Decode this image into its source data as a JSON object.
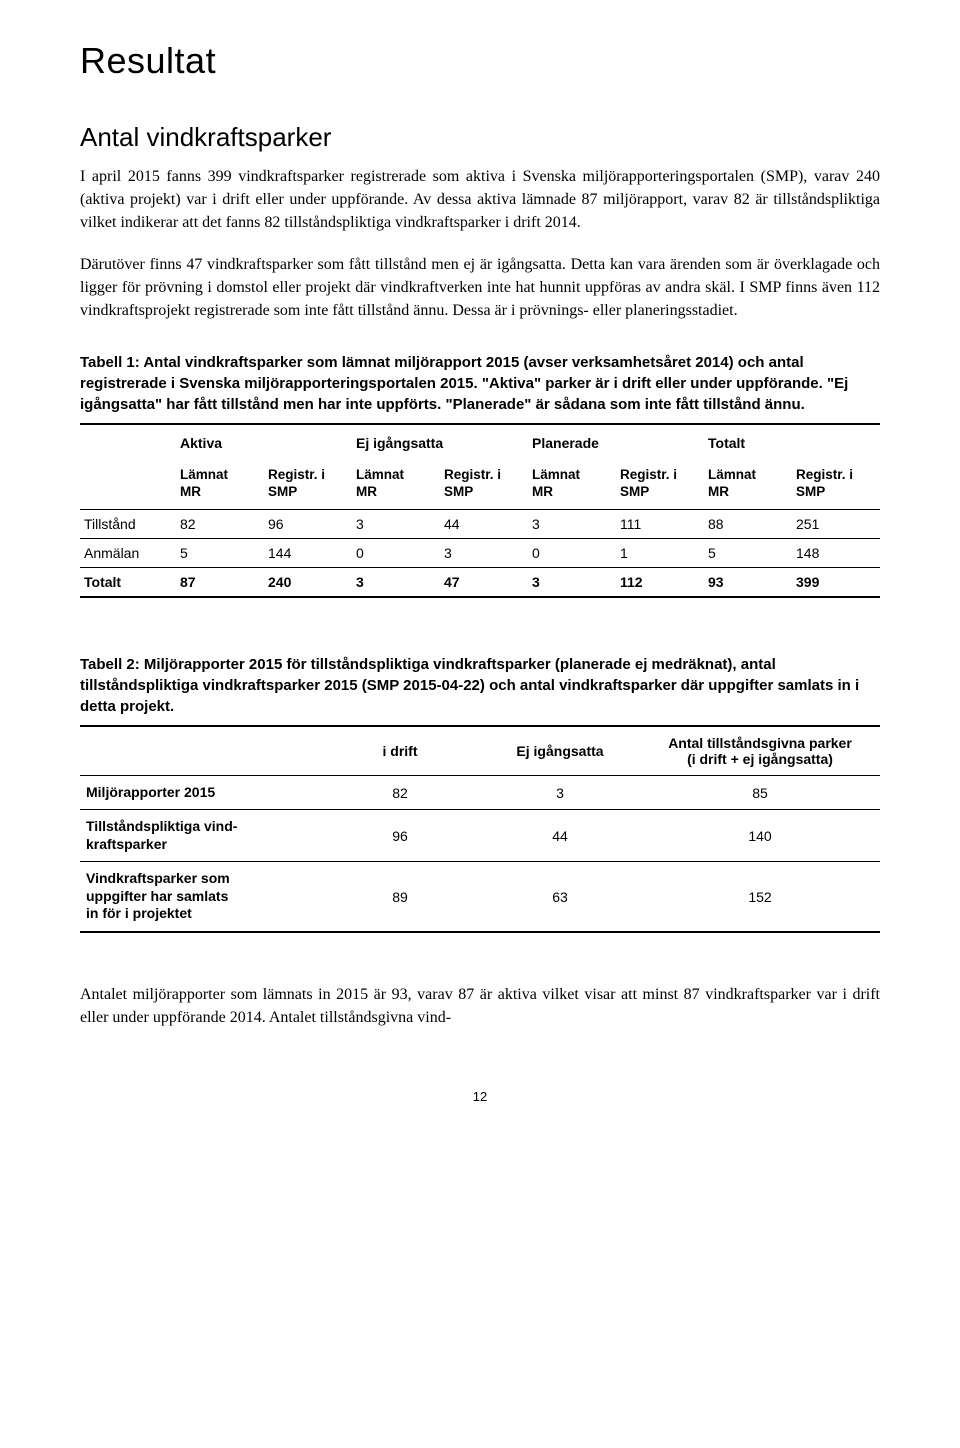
{
  "page": {
    "number": "12",
    "title": "Resultat",
    "section_heading": "Antal vindkraftsparker",
    "paragraph1": "I april 2015 fanns 399 vindkraftsparker registrerade som aktiva i Svenska miljörapporteringsportalen (SMP), varav 240 (aktiva projekt) var i drift eller under uppförande. Av dessa aktiva lämnade 87 miljörapport, varav 82 är tillståndspliktiga vilket indikerar att det fanns 82 tillståndspliktiga vindkraftsparker i drift 2014.",
    "paragraph2": "Därutöver finns 47 vindkraftsparker som fått tillstånd men ej är igångsatta. Detta kan vara ärenden som är överklagade och ligger för prövning i domstol eller projekt där vindkraftverken inte hat hunnit uppföras av andra skäl. I SMP finns även 112 vindkraftsprojekt registrerade som inte fått tillstånd ännu. Dessa är i prövnings- eller planeringsstadiet.",
    "paragraph3": "Antalet miljörapporter som lämnats in 2015 är 93, varav 87 är aktiva vilket visar att minst 87 vindkraftsparker var i drift eller under uppförande 2014. Antalet tillståndsgivna vind-"
  },
  "table1": {
    "caption": "Tabell 1: Antal vindkraftsparker som lämnat miljörapport 2015 (avser verksamhetsåret 2014) och antal registrerade i Svenska miljörapporteringsportalen 2015. \"Aktiva\" parker är i drift eller under uppförande. \"Ej igångsatta\" har fått tillstånd men har inte uppförts. \"Planerade\" är sådana som inte fått tillstånd ännu.",
    "groups": [
      "Aktiva",
      "Ej igångsatta",
      "Planerade",
      "Totalt"
    ],
    "subhead_lmr": "Lämnat\nMR",
    "subhead_reg": "Registr. i\nSMP",
    "rows": [
      {
        "label": "Tillstånd",
        "cells": [
          "82",
          "96",
          "3",
          "44",
          "3",
          "111",
          "88",
          "251"
        ]
      },
      {
        "label": "Anmälan",
        "cells": [
          "5",
          "144",
          "0",
          "3",
          "0",
          "1",
          "5",
          "148"
        ]
      },
      {
        "label": "Totalt",
        "cells": [
          "87",
          "240",
          "3",
          "47",
          "3",
          "112",
          "93",
          "399"
        ],
        "bold": true
      }
    ]
  },
  "table2": {
    "caption": "Tabell 2: Miljörapporter 2015 för tillståndspliktiga vindkraftsparker (planerade ej medräknat), antal tillståndspliktiga vindkraftsparker 2015 (SMP 2015-04-22) och antal vindkraftsparker där uppgifter samlats in i detta projekt.",
    "columns": [
      "i drift",
      "Ej igångsatta",
      "Antal tillståndsgivna parker\n(i drift + ej igångsatta)"
    ],
    "rows": [
      {
        "label": "Miljörapporter 2015",
        "cells": [
          "82",
          "3",
          "85"
        ]
      },
      {
        "label": "Tillståndspliktiga vind-\nkraftsparker",
        "cells": [
          "96",
          "44",
          "140"
        ]
      },
      {
        "label": "Vindkraftsparker som\nuppgifter har samlats\nin för i projektet",
        "cells": [
          "89",
          "63",
          "152"
        ]
      }
    ]
  },
  "style": {
    "text_color": "#000000",
    "background_color": "#ffffff",
    "rule_color": "#000000",
    "title_fontsize_pt": 28,
    "heading_fontsize_pt": 20,
    "body_fontsize_pt": 12,
    "table_fontsize_pt": 11,
    "caption_fontsize_pt": 11,
    "font_body": "Georgia / Garamond serif",
    "font_headings": "Arial / Helvetica sans-serif",
    "table1_col_widths_pct": [
      12,
      10,
      10,
      10,
      10,
      10,
      10,
      10,
      10
    ],
    "table2_col_widths_pct": [
      34,
      18,
      20,
      28
    ]
  }
}
